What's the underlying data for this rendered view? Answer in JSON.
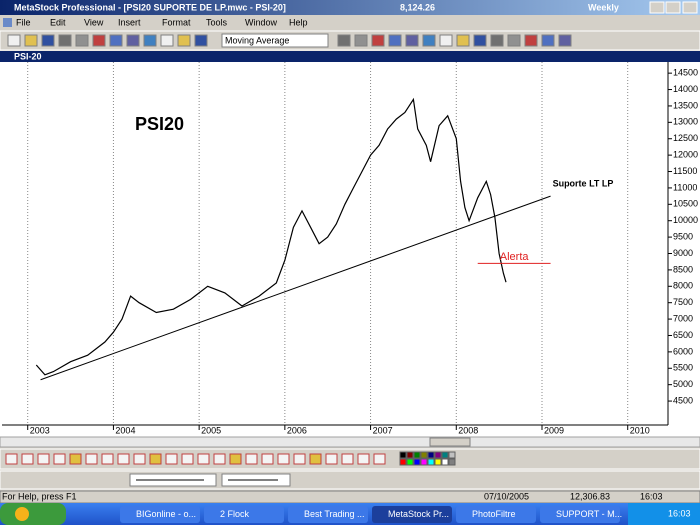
{
  "window": {
    "title": "MetaStock Professional - [PSI20 SUPORTE DE LP.mwc - PSI-20]",
    "last_value": "8,124.26",
    "periodicity": "Weekly"
  },
  "menu": [
    "File",
    "Edit",
    "View",
    "Insert",
    "Format",
    "Tools",
    "Window",
    "Help"
  ],
  "toolbar": {
    "indicator": "Moving Average"
  },
  "chart_window": {
    "title": "PSI-20"
  },
  "chart_data": {
    "type": "line",
    "title": "PSI20",
    "color": "#000000",
    "x": [
      2003.1,
      2003.2,
      2003.3,
      2003.5,
      2003.7,
      2003.9,
      2004.0,
      2004.1,
      2004.2,
      2004.3,
      2004.5,
      2004.7,
      2004.9,
      2005.0,
      2005.1,
      2005.3,
      2005.5,
      2005.7,
      2005.9,
      2006.0,
      2006.1,
      2006.2,
      2006.3,
      2006.4,
      2006.5,
      2006.6,
      2006.7,
      2006.8,
      2006.9,
      2007.0,
      2007.1,
      2007.2,
      2007.3,
      2007.4,
      2007.5,
      2007.55,
      2007.65,
      2007.7,
      2007.8,
      2007.9,
      2008.0,
      2008.05,
      2008.1,
      2008.15,
      2008.25,
      2008.35,
      2008.4,
      2008.45,
      2008.5,
      2008.55,
      2008.58
    ],
    "values": [
      5600,
      5300,
      5400,
      5700,
      5900,
      6300,
      6600,
      7000,
      7700,
      7500,
      7200,
      7300,
      7600,
      7800,
      8000,
      7800,
      7400,
      7700,
      8100,
      8800,
      9800,
      10300,
      9800,
      9300,
      9500,
      9900,
      10500,
      11000,
      11500,
      12000,
      12300,
      12800,
      13100,
      13300,
      13700,
      12800,
      12300,
      11800,
      12900,
      13200,
      12500,
      11200,
      10400,
      10000,
      10700,
      11200,
      10800,
      10100,
      9000,
      8400,
      8124.26
    ],
    "xlim": [
      2002.7,
      2010.47
    ],
    "xticks": [
      2003,
      2004,
      2005,
      2006,
      2007,
      2008,
      2009,
      2010
    ],
    "ylim": [
      3770,
      14840
    ],
    "yticks": [
      4500,
      5000,
      5500,
      6000,
      6500,
      7000,
      7500,
      8000,
      8500,
      9000,
      9500,
      10000,
      10500,
      11000,
      11500,
      12000,
      12500,
      13000,
      13500,
      14000,
      14500
    ],
    "grid": "x",
    "support_line": {
      "label": "Suporte LT LP",
      "x": [
        2003.15,
        2009.1
      ],
      "y": [
        5150,
        10750
      ],
      "color": "#000000"
    },
    "alert_line": {
      "label": "Alerta",
      "value": 8700,
      "x": [
        2008.25,
        2009.1
      ],
      "color": "#e02020"
    }
  },
  "status_bar": {
    "help": "For Help, press F1",
    "date": "07/10/2005",
    "value": "12,306.83",
    "time": "16:03"
  },
  "taskbar": {
    "items": [
      "BIGonline - o...",
      "2 Flock",
      "Best Trading ...",
      "MetaStock Pr...",
      "PhotoFiltre",
      "SUPPORT - M..."
    ],
    "clock": "16:03"
  }
}
